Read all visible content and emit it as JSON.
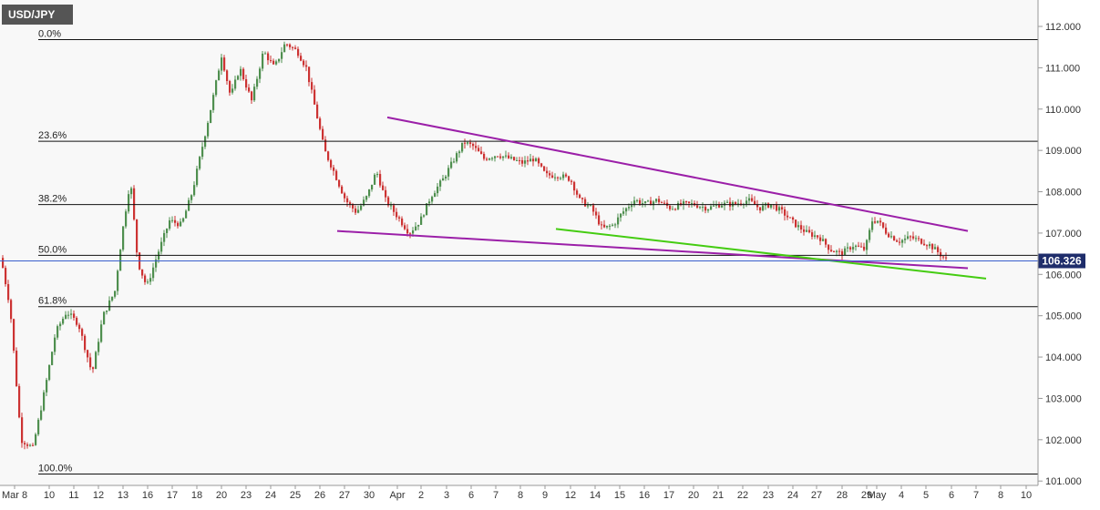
{
  "symbol": "USD/JPY",
  "colors": {
    "background": "#f8f8f8",
    "bull": "#4f8f4f",
    "bear": "#cc3333",
    "resistance": "#9b1fa8",
    "support_green": "#44cc11",
    "fib_line": "#111111",
    "price_line": "#3a5fcd",
    "price_label_bg": "#1f2d6b"
  },
  "current_price": {
    "value": 106.326,
    "label": "106.326"
  },
  "chart_data": {
    "type": "candlestick",
    "y_axis": {
      "min": 101.0,
      "max": 112.2,
      "tick_labels": [
        "101.000",
        "102.000",
        "103.000",
        "104.000",
        "105.000",
        "106.000",
        "107.000",
        "108.000",
        "109.000",
        "110.000",
        "111.000",
        "112.000"
      ]
    },
    "x_axis": {
      "tick_labels": [
        "Mar 8",
        "10",
        "11",
        "12",
        "13",
        "16",
        "17",
        "18",
        "20",
        "23",
        "24",
        "25",
        "26",
        "27",
        "30",
        "Apr",
        "2",
        "3",
        "6",
        "7",
        "8",
        "9",
        "12",
        "14",
        "15",
        "16",
        "17",
        "20",
        "21",
        "22",
        "23",
        "24",
        "27",
        "28",
        "29",
        "May",
        "4",
        "5",
        "6",
        "7",
        "8",
        "10"
      ]
    },
    "fibonacci": [
      {
        "label": "0.0%",
        "price": 111.68
      },
      {
        "label": "23.6%",
        "price": 109.22
      },
      {
        "label": "38.2%",
        "price": 107.69
      },
      {
        "label": "50.0%",
        "price": 106.46
      },
      {
        "label": "61.8%",
        "price": 105.22
      },
      {
        "label": "100.0%",
        "price": 101.17
      }
    ],
    "close_path": [
      [
        0,
        106.4
      ],
      [
        10,
        105.2
      ],
      [
        22,
        102.0
      ],
      [
        35,
        101.8
      ],
      [
        48,
        103.2
      ],
      [
        60,
        104.6
      ],
      [
        72,
        105.1
      ],
      [
        85,
        104.8
      ],
      [
        100,
        103.6
      ],
      [
        112,
        105.0
      ],
      [
        125,
        105.6
      ],
      [
        133,
        107.0
      ],
      [
        142,
        108.3
      ],
      [
        150,
        106.3
      ],
      [
        160,
        105.7
      ],
      [
        172,
        106.5
      ],
      [
        185,
        107.3
      ],
      [
        198,
        107.2
      ],
      [
        210,
        108.0
      ],
      [
        222,
        109.2
      ],
      [
        232,
        110.2
      ],
      [
        242,
        111.3
      ],
      [
        252,
        110.3
      ],
      [
        262,
        111.0
      ],
      [
        275,
        110.2
      ],
      [
        288,
        111.4
      ],
      [
        300,
        111.0
      ],
      [
        312,
        111.6
      ],
      [
        325,
        111.4
      ],
      [
        335,
        111.0
      ],
      [
        345,
        110.0
      ],
      [
        355,
        109.0
      ],
      [
        365,
        108.5
      ],
      [
        378,
        107.8
      ],
      [
        390,
        107.5
      ],
      [
        402,
        107.9
      ],
      [
        412,
        108.5
      ],
      [
        422,
        107.8
      ],
      [
        435,
        107.4
      ],
      [
        448,
        107.0
      ],
      [
        460,
        107.3
      ],
      [
        472,
        107.9
      ],
      [
        485,
        108.3
      ],
      [
        495,
        108.7
      ],
      [
        508,
        109.2
      ],
      [
        518,
        109.1
      ],
      [
        530,
        108.8
      ],
      [
        545,
        108.9
      ],
      [
        558,
        108.8
      ],
      [
        572,
        108.7
      ],
      [
        585,
        108.8
      ],
      [
        598,
        108.4
      ],
      [
        612,
        108.4
      ],
      [
        625,
        108.3
      ],
      [
        635,
        107.8
      ],
      [
        648,
        107.6
      ],
      [
        660,
        107.1
      ],
      [
        672,
        107.2
      ],
      [
        682,
        107.5
      ],
      [
        695,
        107.8
      ],
      [
        708,
        107.7
      ],
      [
        720,
        107.8
      ],
      [
        735,
        107.6
      ],
      [
        748,
        107.7
      ],
      [
        760,
        107.7
      ],
      [
        775,
        107.6
      ],
      [
        790,
        107.7
      ],
      [
        805,
        107.7
      ],
      [
        820,
        107.8
      ],
      [
        832,
        107.6
      ],
      [
        845,
        107.7
      ],
      [
        858,
        107.5
      ],
      [
        872,
        107.2
      ],
      [
        885,
        107.0
      ],
      [
        898,
        106.9
      ],
      [
        910,
        106.6
      ],
      [
        922,
        106.5
      ],
      [
        935,
        106.7
      ],
      [
        948,
        106.6
      ],
      [
        956,
        107.3
      ],
      [
        962,
        107.3
      ],
      [
        972,
        107.0
      ],
      [
        985,
        106.8
      ],
      [
        998,
        106.9
      ],
      [
        1010,
        106.8
      ],
      [
        1020,
        106.7
      ],
      [
        1030,
        106.5
      ],
      [
        1038,
        106.33
      ]
    ],
    "trendlines": [
      {
        "name": "upper",
        "color": "#9b1fa8",
        "points": [
          [
            425,
            109.8
          ],
          [
            1062,
            107.05
          ]
        ]
      },
      {
        "name": "lower",
        "color": "#9b1fa8",
        "points": [
          [
            370,
            107.05
          ],
          [
            1062,
            106.15
          ]
        ]
      },
      {
        "name": "green",
        "color": "#44cc11",
        "points": [
          [
            610,
            107.1
          ],
          [
            1082,
            105.9
          ]
        ]
      }
    ]
  }
}
